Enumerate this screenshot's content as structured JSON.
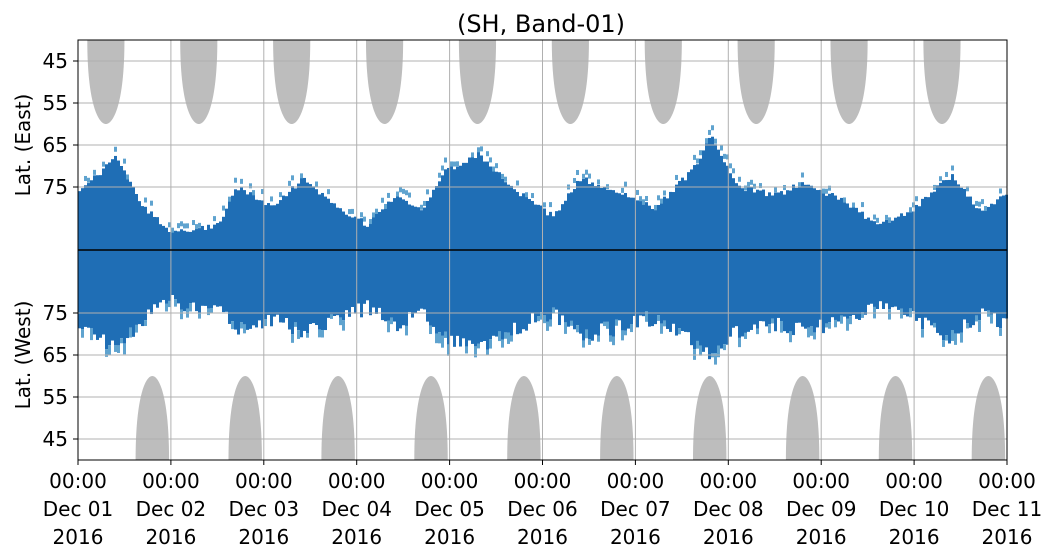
{
  "chart_data": {
    "type": "heatmap",
    "title": "(SH, Band-01)",
    "ylabel_top": "Lat. (East)",
    "ylabel_bottom": "Lat. (West)",
    "y_tick_labels_east": [
      "45",
      "55",
      "65",
      "75"
    ],
    "y_tick_labels_west": [
      "75",
      "65",
      "55",
      "45"
    ],
    "y_ticks_east": [
      45,
      55,
      65,
      75
    ],
    "y_ticks_west": [
      75,
      65,
      55,
      45
    ],
    "y_range_lat": [
      40,
      90
    ],
    "x_tick_labels": [
      {
        "time": "00:00",
        "date": "Dec 01",
        "year": "2016"
      },
      {
        "time": "00:00",
        "date": "Dec 02",
        "year": "2016"
      },
      {
        "time": "00:00",
        "date": "Dec 03",
        "year": "2016"
      },
      {
        "time": "00:00",
        "date": "Dec 04",
        "year": "2016"
      },
      {
        "time": "00:00",
        "date": "Dec 05",
        "year": "2016"
      },
      {
        "time": "00:00",
        "date": "Dec 06",
        "year": "2016"
      },
      {
        "time": "00:00",
        "date": "Dec 07",
        "year": "2016"
      },
      {
        "time": "00:00",
        "date": "Dec 08",
        "year": "2016"
      },
      {
        "time": "00:00",
        "date": "Dec 09",
        "year": "2016"
      },
      {
        "time": "00:00",
        "date": "Dec 10",
        "year": "2016"
      },
      {
        "time": "00:00",
        "date": "Dec 11",
        "year": "2016"
      }
    ],
    "x_range": [
      "2016-12-01 00:00",
      "2016-12-11 00:00"
    ],
    "grid": true,
    "colors": {
      "coverage_gap": "#bdbdbd",
      "dark_blue": "#1f6eb5",
      "light_blue": "#5fa3cf",
      "grid": "#b0b0b0",
      "center_line": "#000000"
    },
    "gray_sun_east_centers_day": [
      0.3,
      1.3,
      2.3,
      3.3,
      4.3,
      5.3,
      6.3,
      7.3,
      8.3,
      9.3
    ],
    "gray_sun_west_centers_day": [
      0.8,
      1.8,
      2.8,
      3.8,
      4.8,
      5.8,
      6.8,
      7.8,
      8.8,
      9.8
    ],
    "gray_sun_min_lat": 60,
    "activity_east_peak_lat": [
      {
        "day": 0.0,
        "lat": 76
      },
      {
        "day": 0.4,
        "lat": 68
      },
      {
        "day": 0.7,
        "lat": 80
      },
      {
        "day": 1.0,
        "lat": 86
      },
      {
        "day": 1.5,
        "lat": 84
      },
      {
        "day": 1.7,
        "lat": 75
      },
      {
        "day": 2.1,
        "lat": 80
      },
      {
        "day": 2.4,
        "lat": 73
      },
      {
        "day": 2.8,
        "lat": 80
      },
      {
        "day": 3.1,
        "lat": 84
      },
      {
        "day": 3.4,
        "lat": 77
      },
      {
        "day": 3.7,
        "lat": 81
      },
      {
        "day": 3.9,
        "lat": 72
      },
      {
        "day": 4.3,
        "lat": 67
      },
      {
        "day": 4.7,
        "lat": 76
      },
      {
        "day": 5.1,
        "lat": 82
      },
      {
        "day": 5.4,
        "lat": 73
      },
      {
        "day": 5.8,
        "lat": 76
      },
      {
        "day": 6.2,
        "lat": 80
      },
      {
        "day": 6.6,
        "lat": 71
      },
      {
        "day": 6.8,
        "lat": 63
      },
      {
        "day": 7.1,
        "lat": 75
      },
      {
        "day": 7.5,
        "lat": 77
      },
      {
        "day": 7.8,
        "lat": 74
      },
      {
        "day": 8.2,
        "lat": 78
      },
      {
        "day": 8.6,
        "lat": 84
      },
      {
        "day": 9.0,
        "lat": 80
      },
      {
        "day": 9.4,
        "lat": 72
      },
      {
        "day": 9.7,
        "lat": 81
      },
      {
        "day": 10.0,
        "lat": 76
      }
    ]
  }
}
